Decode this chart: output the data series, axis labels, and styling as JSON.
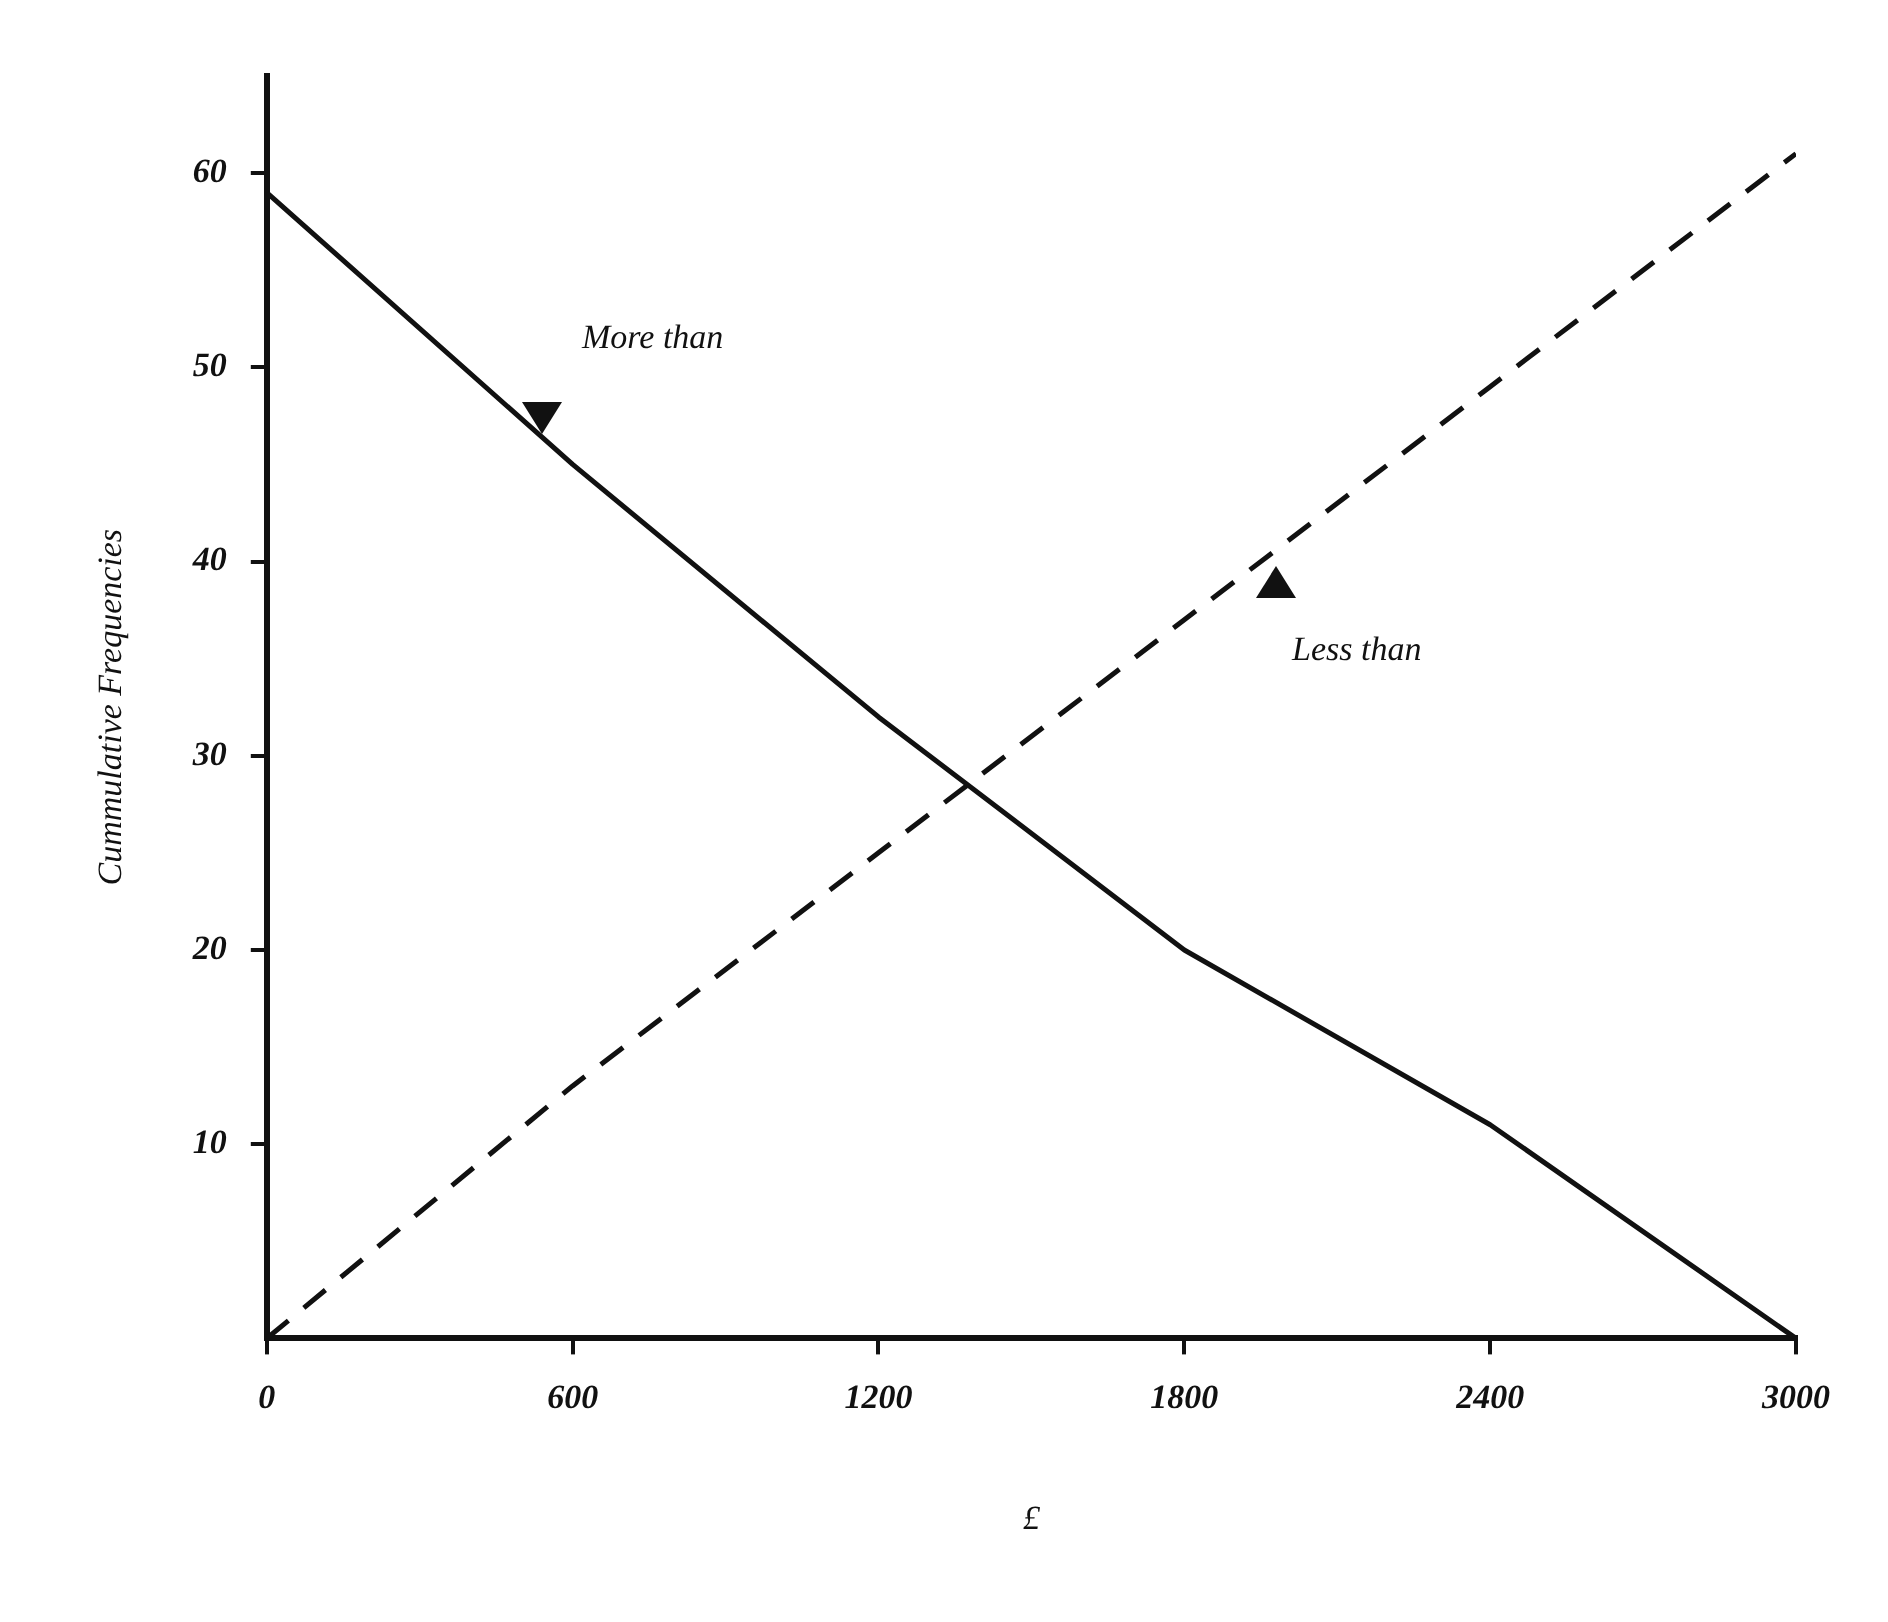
{
  "chart_data": {
    "type": "line",
    "xlabel": "£",
    "ylabel": "Cummulative Frequencies",
    "x": [
      0,
      600,
      1200,
      1800,
      2400,
      3000
    ],
    "series": [
      {
        "name": "More than",
        "color": "#111111",
        "line_style": "solid",
        "values": [
          59,
          45,
          32,
          20,
          11,
          0
        ]
      },
      {
        "name": "Less than",
        "color": "#111111",
        "line_style": "dashed",
        "values": [
          0,
          13,
          25,
          37,
          49,
          61
        ]
      }
    ],
    "xlim": [
      0,
      3000
    ],
    "ylim": [
      0,
      65
    ],
    "xticks": [
      0,
      600,
      1200,
      1800,
      2400,
      3000
    ],
    "yticks": [
      10,
      20,
      30,
      40,
      50,
      60
    ],
    "grid": false,
    "marker": "none"
  }
}
